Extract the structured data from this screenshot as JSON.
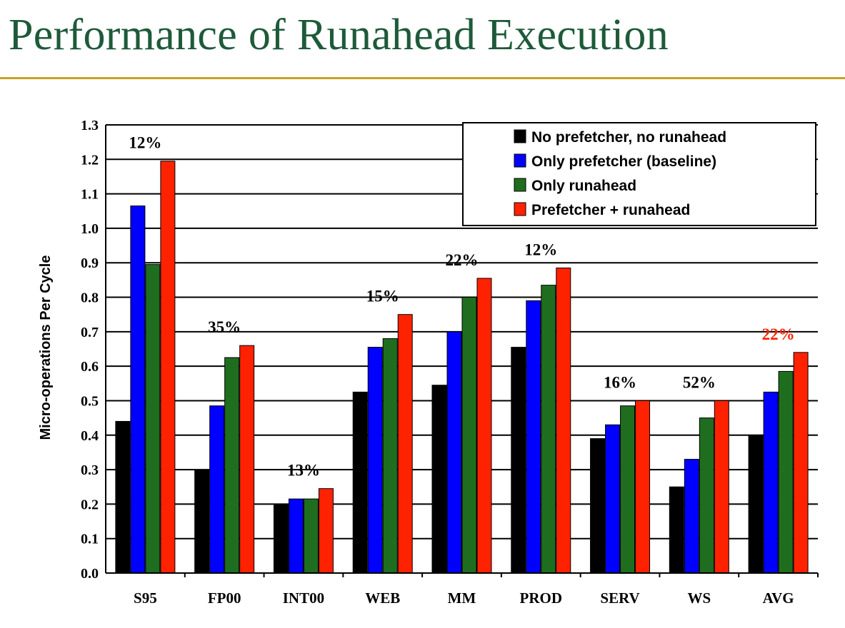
{
  "slide": {
    "title": "Performance of Runahead Execution"
  },
  "chart_data": {
    "type": "bar",
    "title": "",
    "xlabel": "",
    "ylabel": "Micro-operations Per Cycle",
    "ylim": [
      0,
      1.3
    ],
    "yticks": [
      "0.0",
      "0.1",
      "0.2",
      "0.3",
      "0.4",
      "0.5",
      "0.6",
      "0.7",
      "0.8",
      "0.9",
      "1.0",
      "1.1",
      "1.2",
      "1.3"
    ],
    "grid": true,
    "legend_position": "top-right",
    "categories": [
      "S95",
      "FP00",
      "INT00",
      "WEB",
      "MM",
      "PROD",
      "SERV",
      "WS",
      "AVG"
    ],
    "series": [
      {
        "name": "No prefetcher, no runahead",
        "color": "#000000",
        "values": [
          0.44,
          0.3,
          0.2,
          0.525,
          0.545,
          0.655,
          0.39,
          0.25,
          0.4
        ]
      },
      {
        "name": "Only prefetcher (baseline)",
        "color": "#0000ff",
        "values": [
          1.065,
          0.485,
          0.215,
          0.655,
          0.7,
          0.79,
          0.43,
          0.33,
          0.525
        ]
      },
      {
        "name": "Only runahead",
        "color": "#1f6e1f",
        "values": [
          0.895,
          0.625,
          0.215,
          0.68,
          0.8,
          0.835,
          0.485,
          0.45,
          0.585
        ]
      },
      {
        "name": "Prefetcher + runahead",
        "color": "#ff2200",
        "values": [
          1.195,
          0.66,
          0.245,
          0.75,
          0.855,
          0.885,
          0.5,
          0.5,
          0.64
        ]
      }
    ],
    "annotations": [
      "12%",
      "35%",
      "13%",
      "15%",
      "22%",
      "12%",
      "16%",
      "52%",
      "22%"
    ],
    "annotation_colors": [
      "#000000",
      "#000000",
      "#000000",
      "#000000",
      "#000000",
      "#000000",
      "#000000",
      "#000000",
      "#ff2200"
    ]
  }
}
